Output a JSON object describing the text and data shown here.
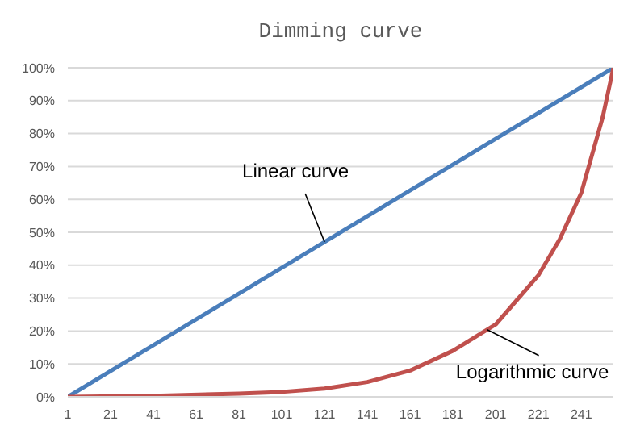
{
  "chart_data": {
    "type": "line",
    "title": "Dimming curve",
    "xlim": [
      1,
      256
    ],
    "xticks": [
      1,
      21,
      41,
      61,
      81,
      101,
      121,
      141,
      161,
      181,
      201,
      221,
      241
    ],
    "ylim": [
      0,
      100
    ],
    "yticks": [
      {
        "value": 0,
        "label": "0%"
      },
      {
        "value": 10,
        "label": "10%"
      },
      {
        "value": 20,
        "label": "20%"
      },
      {
        "value": 30,
        "label": "30%"
      },
      {
        "value": 40,
        "label": "40%"
      },
      {
        "value": 50,
        "label": "50%"
      },
      {
        "value": 60,
        "label": "60%"
      },
      {
        "value": 70,
        "label": "70%"
      },
      {
        "value": 80,
        "label": "80%"
      },
      {
        "value": 90,
        "label": "90%"
      },
      {
        "value": 100,
        "label": "100%"
      }
    ],
    "grid": "y",
    "legend": false,
    "marker": "none",
    "line_style": "solid",
    "series": [
      {
        "name": "Linear curve",
        "color": "#4a7ebb",
        "x": [
          1,
          256
        ],
        "values": [
          0,
          100
        ]
      },
      {
        "name": "Logarithmic curve",
        "color": "#c0504d",
        "x": [
          1,
          41,
          81,
          101,
          121,
          141,
          161,
          181,
          201,
          221,
          231,
          241,
          251,
          256
        ],
        "values": [
          0,
          0.3,
          1,
          1.5,
          2.5,
          4.5,
          8,
          14,
          22,
          37,
          48,
          62,
          85,
          100
        ]
      }
    ]
  }
}
